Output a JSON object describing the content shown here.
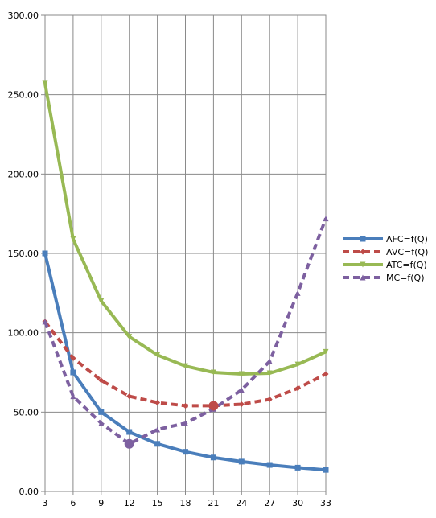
{
  "chart_data": {
    "type": "line",
    "x": [
      3,
      6,
      9,
      12,
      15,
      18,
      21,
      24,
      27,
      30,
      33
    ],
    "ylim": [
      0,
      300
    ],
    "yticks": [
      "0.00",
      "50.00",
      "100.00",
      "150.00",
      "200.00",
      "250.00",
      "300.00"
    ],
    "xticks": [
      "3",
      "6",
      "9",
      "12",
      "15",
      "18",
      "21",
      "24",
      "27",
      "30",
      "33"
    ],
    "grid": true,
    "legend_position": "right",
    "series": [
      {
        "name": "AFC=f(Q)",
        "color": "#4a7ebb",
        "dash": "solid",
        "marker": "square",
        "values": [
          150,
          75,
          50,
          37.5,
          30,
          25,
          21.4,
          18.8,
          16.7,
          15,
          13.6
        ]
      },
      {
        "name": "AVC=f(Q)",
        "color": "#be4b48",
        "dash": "dashed",
        "marker": "diamond",
        "values": [
          107,
          84,
          70,
          60,
          56,
          54,
          54,
          55,
          58,
          65,
          74
        ]
      },
      {
        "name": "ATC=f(Q)",
        "color": "#98b954",
        "dash": "solid",
        "marker": "triangle-down",
        "values": [
          257,
          159,
          120,
          97.5,
          86,
          79,
          75,
          74,
          74.5,
          80,
          88
        ]
      },
      {
        "name": "MC=f(Q)",
        "color": "#7d60a0",
        "dash": "dashed",
        "marker": "triangle",
        "values": [
          107,
          60,
          43,
          30,
          39,
          43,
          52,
          64,
          82,
          125,
          172
        ]
      }
    ],
    "highlights": [
      {
        "x": 12,
        "y": 30,
        "color": "#7d60a0"
      },
      {
        "x": 21,
        "y": 54,
        "color": "#be4b48"
      }
    ]
  }
}
